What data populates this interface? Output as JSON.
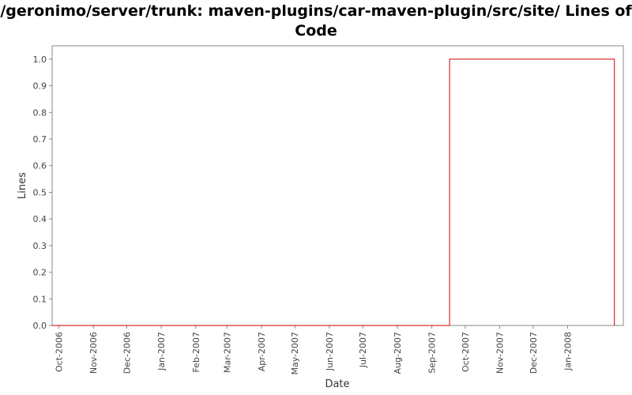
{
  "chart_data": {
    "type": "line",
    "step": true,
    "title": "/geronimo/server/trunk: maven-plugins/car-maven-plugin/src/site/ Lines of Code",
    "xlabel": "Date",
    "ylabel": "Lines",
    "xlim": [
      "2006-09-25",
      "2008-02-20"
    ],
    "ylim": [
      0,
      1.05
    ],
    "grid": false,
    "legend": "none",
    "x_ticks": [
      "Oct-2006",
      "Nov-2006",
      "Dec-2006",
      "Jan-2007",
      "Feb-2007",
      "Mar-2007",
      "Apr-2007",
      "May-2007",
      "Jun-2007",
      "Jul-2007",
      "Aug-2007",
      "Sep-2007",
      "Oct-2007",
      "Nov-2007",
      "Dec-2007",
      "Jan-2008"
    ],
    "y_ticks": [
      "0.0",
      "0.1",
      "0.2",
      "0.3",
      "0.4",
      "0.5",
      "0.6",
      "0.7",
      "0.8",
      "0.9",
      "1.0"
    ],
    "series": [
      {
        "color": "#cc0000",
        "points": [
          {
            "x": "2006-09-25",
            "y": 0
          },
          {
            "x": "2007-09-17",
            "y": 0
          },
          {
            "x": "2007-09-17",
            "y": 1
          },
          {
            "x": "2008-02-12",
            "y": 1
          },
          {
            "x": "2008-02-12",
            "y": 0
          }
        ]
      }
    ]
  }
}
